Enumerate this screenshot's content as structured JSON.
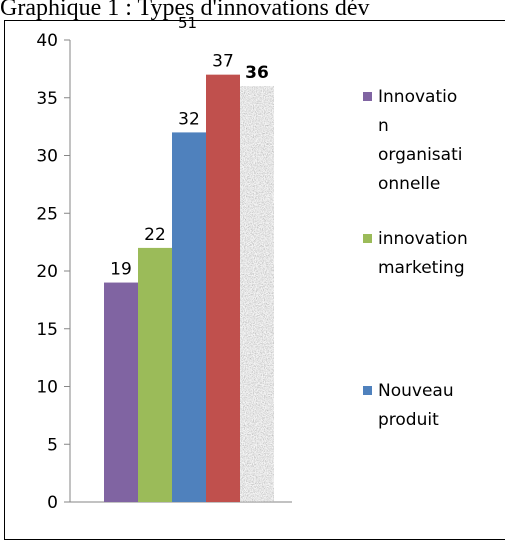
{
  "title": "Graphique 1 : Types d'innovations dév",
  "page_number": "51",
  "chart_data": {
    "type": "bar",
    "categories": [
      "Innovation organisationnelle",
      "innovation marketing",
      "Nouveau produit",
      "",
      ""
    ],
    "values": [
      19,
      22,
      32,
      37,
      36
    ],
    "data_labels": [
      "19",
      "22",
      "32",
      "37",
      "36"
    ],
    "ylim": [
      0,
      40
    ],
    "yticks": [
      0,
      5,
      10,
      15,
      20,
      25,
      30,
      35,
      40
    ],
    "grid": false,
    "legend_position": "right",
    "colors": [
      "#8064A2",
      "#9BBB59",
      "#4F81BD",
      "#C0504D",
      "#9a9a9a"
    ],
    "legend": [
      {
        "lines": [
          "Innovatio",
          "n",
          "organisati",
          "onnelle"
        ],
        "color": "#8064A2"
      },
      {
        "lines": [
          "innovation",
          "marketing"
        ],
        "color": "#9BBB59"
      },
      {
        "lines": [
          "Nouveau",
          "produit"
        ],
        "color": "#4F81BD"
      }
    ]
  }
}
